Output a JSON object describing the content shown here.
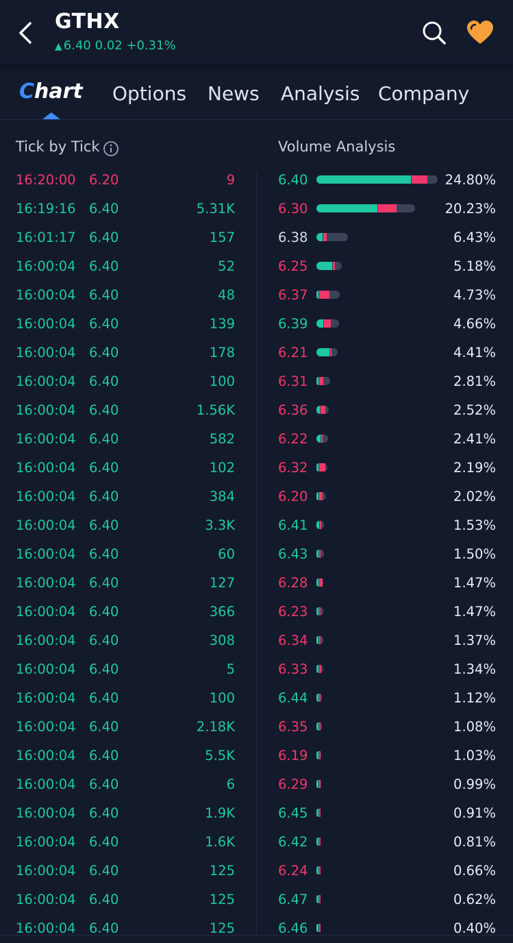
{
  "header": {
    "symbol": "GTHX",
    "price": "6.40",
    "change": "0.02",
    "change_pct": "+0.31%",
    "accent_up": "#1fc7a2",
    "accent_down": "#f0386b",
    "accent_blue": "#3b8cff",
    "fav_color": "#f5a03a"
  },
  "tabs": [
    {
      "label": "hart",
      "first": "C"
    },
    {
      "label": "Options"
    },
    {
      "label": "News"
    },
    {
      "label": "Analysis"
    },
    {
      "label": "Company"
    }
  ],
  "tick_by_tick": {
    "title": "Tick by Tick",
    "rows": [
      {
        "time": "16:20:00",
        "price": "6.20",
        "vol": "9",
        "dir": "down"
      },
      {
        "time": "16:19:16",
        "price": "6.40",
        "vol": "5.31K",
        "dir": "up"
      },
      {
        "time": "16:01:17",
        "price": "6.40",
        "vol": "157",
        "dir": "up"
      },
      {
        "time": "16:00:04",
        "price": "6.40",
        "vol": "52",
        "dir": "up"
      },
      {
        "time": "16:00:04",
        "price": "6.40",
        "vol": "48",
        "dir": "up"
      },
      {
        "time": "16:00:04",
        "price": "6.40",
        "vol": "139",
        "dir": "up"
      },
      {
        "time": "16:00:04",
        "price": "6.40",
        "vol": "178",
        "dir": "up"
      },
      {
        "time": "16:00:04",
        "price": "6.40",
        "vol": "100",
        "dir": "up"
      },
      {
        "time": "16:00:04",
        "price": "6.40",
        "vol": "1.56K",
        "dir": "up"
      },
      {
        "time": "16:00:04",
        "price": "6.40",
        "vol": "582",
        "dir": "up"
      },
      {
        "time": "16:00:04",
        "price": "6.40",
        "vol": "102",
        "dir": "up"
      },
      {
        "time": "16:00:04",
        "price": "6.40",
        "vol": "384",
        "dir": "up"
      },
      {
        "time": "16:00:04",
        "price": "6.40",
        "vol": "3.3K",
        "dir": "up"
      },
      {
        "time": "16:00:04",
        "price": "6.40",
        "vol": "60",
        "dir": "up"
      },
      {
        "time": "16:00:04",
        "price": "6.40",
        "vol": "127",
        "dir": "up"
      },
      {
        "time": "16:00:04",
        "price": "6.40",
        "vol": "366",
        "dir": "up"
      },
      {
        "time": "16:00:04",
        "price": "6.40",
        "vol": "308",
        "dir": "up"
      },
      {
        "time": "16:00:04",
        "price": "6.40",
        "vol": "5",
        "dir": "up"
      },
      {
        "time": "16:00:04",
        "price": "6.40",
        "vol": "100",
        "dir": "up"
      },
      {
        "time": "16:00:04",
        "price": "6.40",
        "vol": "2.18K",
        "dir": "up"
      },
      {
        "time": "16:00:04",
        "price": "6.40",
        "vol": "5.5K",
        "dir": "up"
      },
      {
        "time": "16:00:04",
        "price": "6.40",
        "vol": "6",
        "dir": "up"
      },
      {
        "time": "16:00:04",
        "price": "6.40",
        "vol": "1.9K",
        "dir": "up"
      },
      {
        "time": "16:00:04",
        "price": "6.40",
        "vol": "1.6K",
        "dir": "up"
      },
      {
        "time": "16:00:04",
        "price": "6.40",
        "vol": "125",
        "dir": "up"
      },
      {
        "time": "16:00:04",
        "price": "6.40",
        "vol": "125",
        "dir": "up"
      },
      {
        "time": "16:00:04",
        "price": "6.40",
        "vol": "125",
        "dir": "up"
      }
    ]
  },
  "volume_analysis": {
    "title": "Volume Analysis",
    "rows": [
      {
        "price": "6.40",
        "pct": "24.80%",
        "dir": "up",
        "buy": 0.78,
        "sell": 0.13
      },
      {
        "price": "6.30",
        "pct": "20.23%",
        "dir": "down",
        "buy": 0.62,
        "sell": 0.19
      },
      {
        "price": "6.38",
        "pct": "6.43%",
        "dir": "neutral",
        "buy": 0.2,
        "sell": 0.1
      },
      {
        "price": "6.25",
        "pct": "5.18%",
        "dir": "down",
        "buy": 0.62,
        "sell": 0.08
      },
      {
        "price": "6.37",
        "pct": "4.73%",
        "dir": "down",
        "buy": 0.1,
        "sell": 0.45
      },
      {
        "price": "6.39",
        "pct": "4.66%",
        "dir": "up",
        "buy": 0.3,
        "sell": 0.3
      },
      {
        "price": "6.21",
        "pct": "4.41%",
        "dir": "down",
        "buy": 0.62,
        "sell": 0.06
      },
      {
        "price": "6.31",
        "pct": "2.81%",
        "dir": "down",
        "buy": 0.15,
        "sell": 0.3
      },
      {
        "price": "6.36",
        "pct": "2.52%",
        "dir": "down",
        "buy": 0.25,
        "sell": 0.4
      },
      {
        "price": "6.22",
        "pct": "2.41%",
        "dir": "down",
        "buy": 0.35,
        "sell": 0.1
      },
      {
        "price": "6.32",
        "pct": "2.19%",
        "dir": "down",
        "buy": 0.1,
        "sell": 0.55
      },
      {
        "price": "6.20",
        "pct": "2.02%",
        "dir": "down",
        "buy": 0.2,
        "sell": 0.35
      },
      {
        "price": "6.41",
        "pct": "1.53%",
        "dir": "up",
        "buy": 0.4,
        "sell": 0.05
      },
      {
        "price": "6.43",
        "pct": "1.50%",
        "dir": "up",
        "buy": 0.1,
        "sell": 0.05
      },
      {
        "price": "6.28",
        "pct": "1.47%",
        "dir": "down",
        "buy": 0.05,
        "sell": 0.5
      },
      {
        "price": "6.23",
        "pct": "1.47%",
        "dir": "down",
        "buy": 0.2,
        "sell": 0.05
      },
      {
        "price": "6.34",
        "pct": "1.37%",
        "dir": "down",
        "buy": 0.15,
        "sell": 0.2
      },
      {
        "price": "6.33",
        "pct": "1.34%",
        "dir": "down",
        "buy": 0.15,
        "sell": 0.3
      },
      {
        "price": "6.44",
        "pct": "1.12%",
        "dir": "up",
        "buy": 0.4,
        "sell": 0.05
      },
      {
        "price": "6.35",
        "pct": "1.08%",
        "dir": "down",
        "buy": 0.1,
        "sell": 0.15
      },
      {
        "price": "6.19",
        "pct": "1.03%",
        "dir": "down",
        "buy": 0.1,
        "sell": 0.15
      },
      {
        "price": "6.29",
        "pct": "0.99%",
        "dir": "down",
        "buy": 0.1,
        "sell": 0.05
      },
      {
        "price": "6.45",
        "pct": "0.91%",
        "dir": "up",
        "buy": 0.15,
        "sell": 0.2
      },
      {
        "price": "6.42",
        "pct": "0.81%",
        "dir": "up",
        "buy": 0.15,
        "sell": 0.1
      },
      {
        "price": "6.24",
        "pct": "0.66%",
        "dir": "down",
        "buy": 0.05,
        "sell": 0.25
      },
      {
        "price": "6.47",
        "pct": "0.62%",
        "dir": "up",
        "buy": 0.1,
        "sell": 0.05
      },
      {
        "price": "6.46",
        "pct": "0.40%",
        "dir": "up",
        "buy": 0.05,
        "sell": 0.05
      }
    ]
  }
}
